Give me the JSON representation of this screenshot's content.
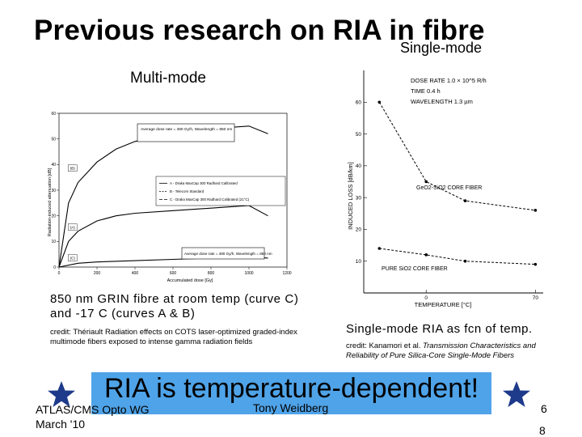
{
  "slide": {
    "title": "Previous research on RIA in fibre",
    "subtitle_single_mode": "Single-mode",
    "subtitle_multi_mode": "Multi-mode",
    "caption_left": "850 nm GRIN fibre at room temp (curve C) and -17 C (curves A & B)",
    "credit_left": "credit: Thériault Radiation effects on COTS laser-optimized graded-index multimode fibers exposed to intense gamma radiation fields",
    "caption_right": "Single-mode RIA as fcn of temp.",
    "credit_right_prefix": "credit: Kanamori et al. ",
    "credit_right_italic": "Transmission Characteristics and Reliability of Pure Silica-Core Single-Mode Fibers",
    "banner": "RIA is temperature-dependent!",
    "footer_left": "ATLAS/CMS Opto WG",
    "footer_date": "March '10",
    "footer_center": "Tony Weidberg",
    "page_number": "6",
    "total_pages": "8",
    "colors": {
      "banner_bg": "#4fa3e8",
      "star": "#1e3a8a",
      "text": "#000000"
    },
    "icons": [
      "star-icon",
      "star-icon"
    ]
  },
  "chart_data": [
    {
      "type": "line",
      "title": "",
      "xlabel": "Accumulated dose [Gy]",
      "ylabel": "Radiation-induced attenuation [dB]",
      "xlim": [
        0,
        1200
      ],
      "ylim": [
        0,
        60
      ],
      "x_ticks": [
        "0",
        "200",
        "400",
        "600",
        "800",
        "1000",
        "1200"
      ],
      "y_ticks": [
        "0",
        "10",
        "20",
        "30",
        "40",
        "50",
        "60"
      ],
      "grid": false,
      "legend": "center-right",
      "legend_entries": [
        "A - Draka MaxCap 300 Radhard Calibrated",
        "B - Telecom Standard",
        "C - Draka MaxCap 300 Radhard Calibrated (21°C)"
      ],
      "annotations": [
        "Average dose rate = 480 Gy/h, Wavelength = 850 nm",
        "Average dose rate = 480 Gy/h, Wavelength = 850 nm"
      ],
      "curve_labels": [
        "(B)",
        "(A)",
        "(C)"
      ],
      "series": [
        {
          "name": "B",
          "x": [
            0,
            50,
            100,
            200,
            300,
            400,
            600,
            800,
            1000,
            1100
          ],
          "y": [
            0,
            25,
            33,
            41,
            46,
            49,
            52,
            54,
            55,
            52
          ]
        },
        {
          "name": "A",
          "x": [
            0,
            50,
            100,
            200,
            300,
            400,
            600,
            800,
            1000,
            1100
          ],
          "y": [
            0,
            10,
            14,
            18,
            20,
            21,
            22,
            23,
            24,
            20
          ]
        },
        {
          "name": "C",
          "x": [
            0,
            100,
            200,
            400,
            600,
            800,
            1000,
            1100
          ],
          "y": [
            0,
            1.5,
            2,
            2.5,
            3,
            3.5,
            4,
            3.5
          ]
        }
      ]
    },
    {
      "type": "line",
      "title": "",
      "xlabel": "TEMPERATURE [°C]",
      "ylabel": "INDUCED LOSS [dB/km]",
      "xlim": [
        -40,
        75
      ],
      "ylim": [
        0,
        70
      ],
      "x_ticks": [
        "0",
        "70"
      ],
      "y_ticks": [
        "10",
        "20",
        "30",
        "40",
        "50",
        "60"
      ],
      "grid": false,
      "conditions": [
        "DOSE RATE 1.0 × 10^5 R/h",
        "TIME 0.4 h",
        "WAVELENGTH 1.3 µm"
      ],
      "series": [
        {
          "name": "GeO2-SiO2 CORE FIBER",
          "x": [
            -30,
            0,
            25,
            70
          ],
          "y": [
            60,
            35,
            29,
            26
          ]
        },
        {
          "name": "PURE SiO2 CORE FIBER",
          "x": [
            -30,
            0,
            25,
            70
          ],
          "y": [
            14,
            12,
            10,
            9
          ]
        }
      ]
    }
  ]
}
